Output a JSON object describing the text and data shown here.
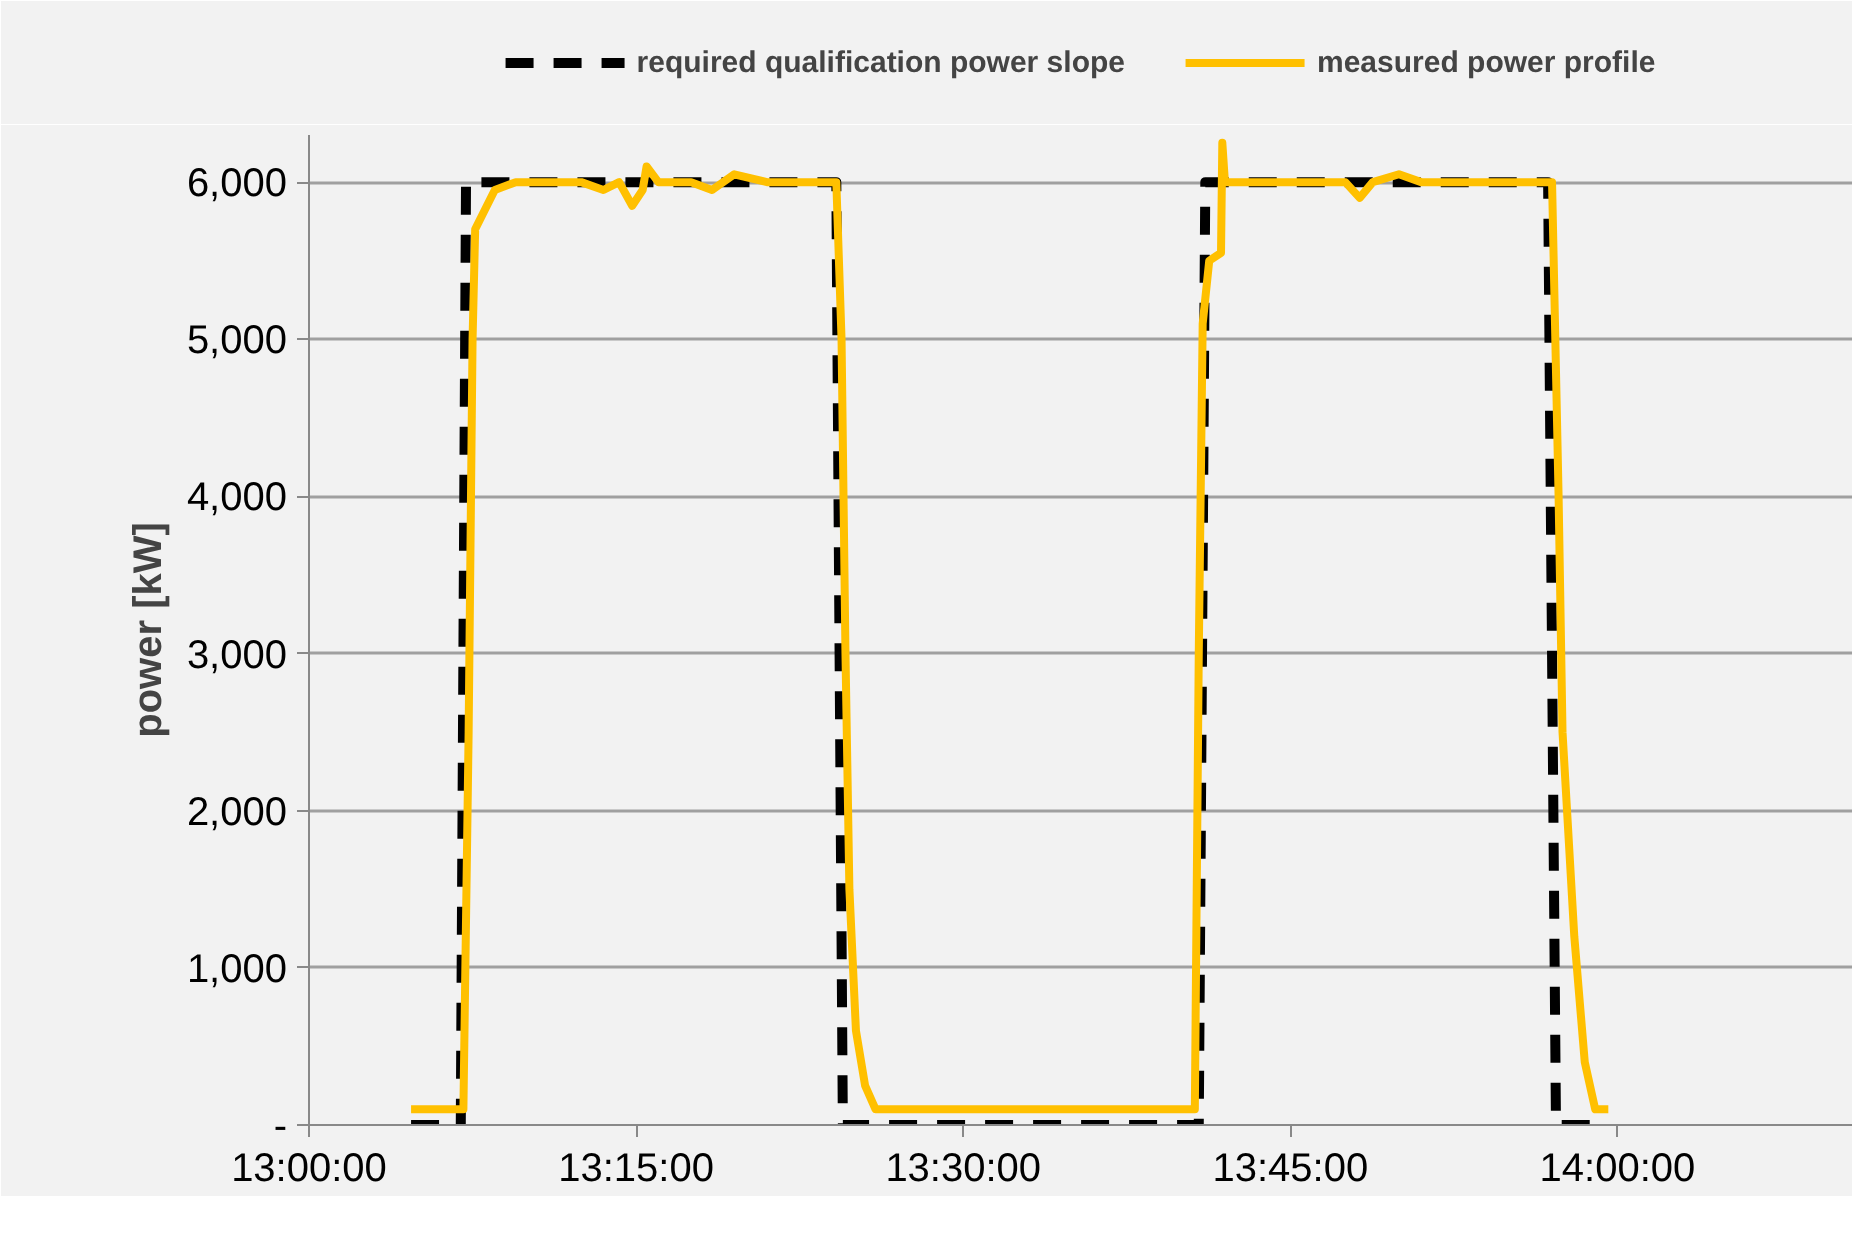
{
  "chart_data": {
    "type": "line",
    "ylabel": "power [kW]",
    "xlim": [
      13.0,
      14.18
    ],
    "ylim": [
      0,
      6300
    ],
    "xticks": [
      {
        "value": 13.0,
        "label": "13:00:00"
      },
      {
        "value": 13.25,
        "label": "13:15:00"
      },
      {
        "value": 13.5,
        "label": "13:30:00"
      },
      {
        "value": 13.75,
        "label": "13:45:00"
      },
      {
        "value": 14.0,
        "label": "14:00:00"
      }
    ],
    "yticks": [
      {
        "value": 0,
        "label": "-"
      },
      {
        "value": 1000,
        "label": "1,000"
      },
      {
        "value": 2000,
        "label": "2,000"
      },
      {
        "value": 3000,
        "label": "3,000"
      },
      {
        "value": 4000,
        "label": "4,000"
      },
      {
        "value": 5000,
        "label": "5,000"
      },
      {
        "value": 6000,
        "label": "6,000"
      }
    ],
    "grid": "y",
    "legend": "top",
    "marker": "none",
    "series": [
      {
        "name": "required qualification power slope",
        "color": "#000000",
        "line_style": "dashed",
        "x": [
          13.078,
          13.116,
          13.12,
          13.403,
          13.408,
          13.68,
          13.685,
          13.947,
          13.953,
          13.992
        ],
        "values": [
          0,
          0,
          6000,
          6000,
          0,
          0,
          6000,
          6000,
          0,
          0
        ]
      },
      {
        "name": "measured power profile",
        "color": "#ffc000",
        "line_style": "solid",
        "x": [
          13.078,
          13.118,
          13.122,
          13.125,
          13.127,
          13.133,
          13.142,
          13.158,
          13.183,
          13.208,
          13.225,
          13.237,
          13.247,
          13.255,
          13.258,
          13.267,
          13.292,
          13.308,
          13.325,
          13.35,
          13.375,
          13.392,
          13.403,
          13.407,
          13.41,
          13.413,
          13.418,
          13.425,
          13.433,
          13.5,
          13.583,
          13.677,
          13.68,
          13.683,
          13.688,
          13.697,
          13.698,
          13.7,
          13.733,
          13.767,
          13.792,
          13.803,
          13.813,
          13.833,
          13.85,
          13.883,
          13.917,
          13.942,
          13.95,
          13.955,
          13.958,
          13.967,
          13.975,
          13.983,
          13.993
        ],
        "values": [
          100,
          100,
          2500,
          5000,
          5700,
          5800,
          5950,
          6000,
          6000,
          6000,
          5950,
          6000,
          5850,
          5950,
          6100,
          6000,
          6000,
          5950,
          6050,
          6000,
          6000,
          6000,
          6000,
          5000,
          3000,
          1500,
          600,
          250,
          100,
          100,
          100,
          100,
          3000,
          5100,
          5500,
          5550,
          6250,
          6000,
          6000,
          6000,
          6000,
          5900,
          6000,
          6050,
          6000,
          6000,
          6000,
          6000,
          6000,
          4000,
          2500,
          1200,
          400,
          100,
          100
        ]
      }
    ]
  }
}
